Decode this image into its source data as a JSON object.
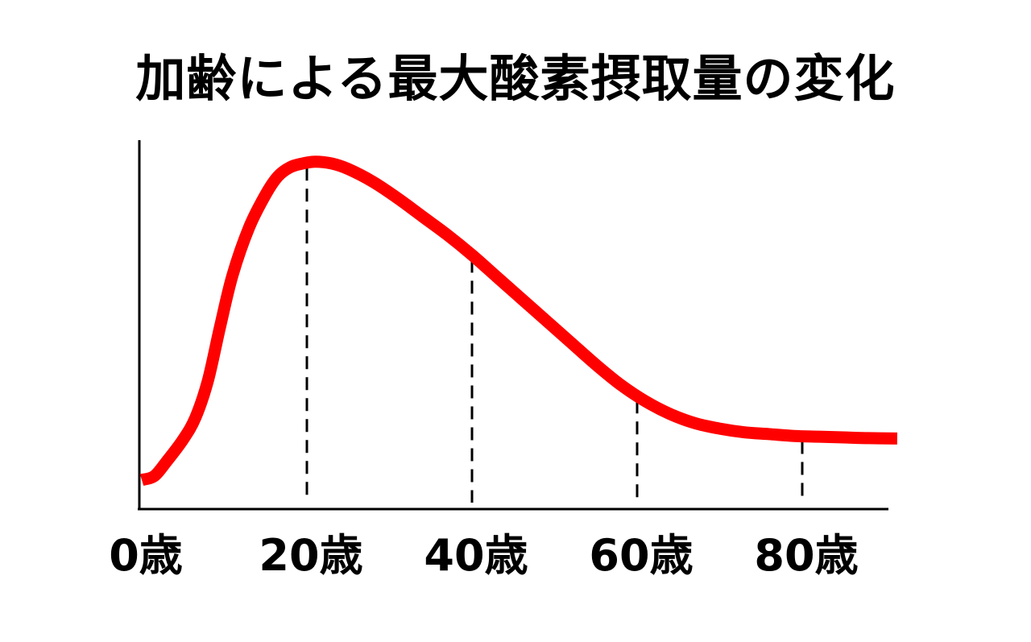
{
  "chart_data": {
    "type": "line",
    "title": "加齢による最大酸素摂取量の変化",
    "xlabel": "",
    "ylabel": "",
    "x_ticks": [
      {
        "value": 0,
        "label": "0歳"
      },
      {
        "value": 20,
        "label": "20歳"
      },
      {
        "value": 40,
        "label": "40歳"
      },
      {
        "value": 60,
        "label": "60歳"
      },
      {
        "value": 80,
        "label": "80歳"
      }
    ],
    "xlim": [
      0,
      92
    ],
    "ylim": [
      0,
      100
    ],
    "grid": false,
    "reference_lines_at_x": [
      20,
      40,
      60,
      80
    ],
    "series": [
      {
        "color": "#ff0000",
        "x": [
          0,
          1.5,
          3,
          5,
          6.5,
          8,
          9.5,
          11,
          13,
          15,
          16.5,
          18,
          19.5,
          21,
          23,
          25,
          28,
          31,
          34,
          37,
          40,
          43,
          46,
          49,
          52,
          55,
          58,
          61,
          64,
          67,
          70,
          73,
          76,
          79,
          82,
          85,
          88,
          91.5
        ],
        "y": [
          8,
          9,
          13,
          19,
          25,
          35,
          50,
          64,
          77,
          86,
          91,
          93.5,
          94.5,
          95,
          94.5,
          93,
          89.5,
          85,
          80,
          75,
          69.5,
          63.5,
          57.5,
          51.5,
          45.5,
          39.5,
          34,
          29.5,
          26,
          23.5,
          22,
          21,
          20.5,
          20,
          19.8,
          19.6,
          19.4,
          19.3
        ]
      }
    ]
  }
}
